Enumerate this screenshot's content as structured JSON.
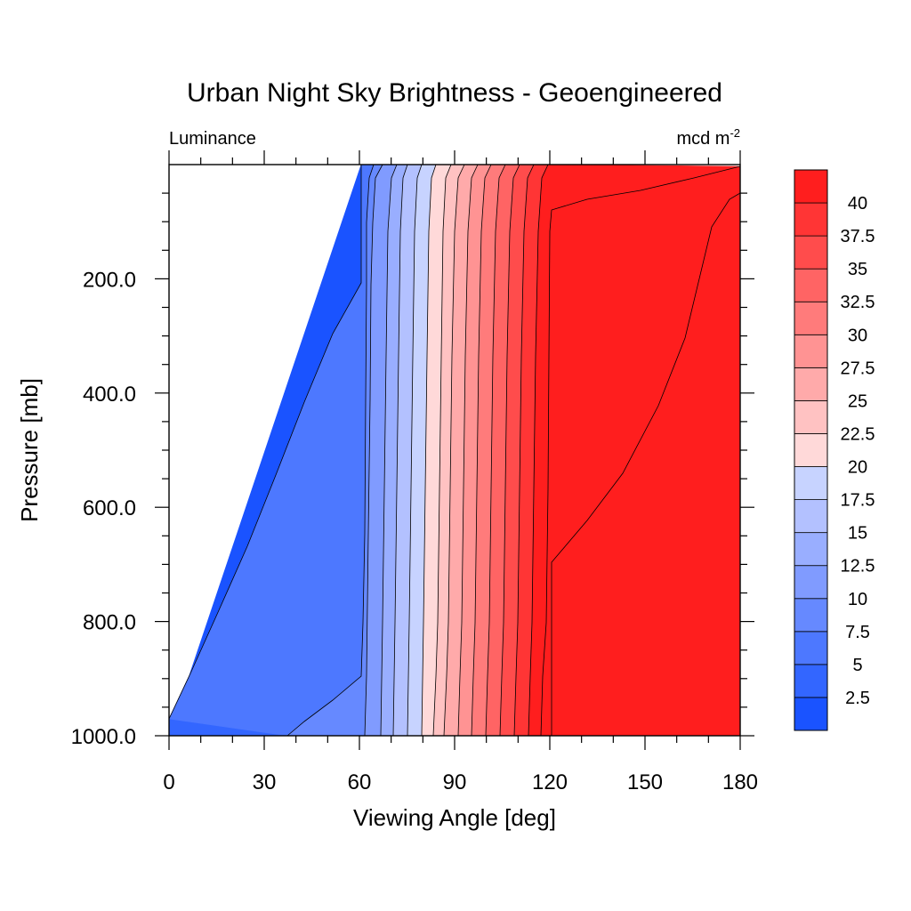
{
  "chart_data": {
    "type": "heatmap",
    "subtype": "filled-contour",
    "title": "Urban Night Sky Brightness - Geoengineered",
    "left_string": "Luminance",
    "right_string": "mcd m",
    "right_string_sup": "-2",
    "xlabel": "Viewing Angle [deg]",
    "ylabel": "Pressure [mb]",
    "xlim": [
      0,
      180
    ],
    "ylim": [
      1000,
      0
    ],
    "y_reversed": true,
    "x_ticks": [
      0,
      30,
      60,
      90,
      120,
      150,
      180
    ],
    "x_tick_labels": [
      "0",
      "30",
      "60",
      "90",
      "120",
      "150",
      "180"
    ],
    "y_ticks": [
      200,
      400,
      600,
      800,
      1000
    ],
    "y_tick_labels": [
      "200.0",
      "400.0",
      "600.0",
      "800.0",
      "1000.0"
    ],
    "contour_levels": [
      2.5,
      5,
      7.5,
      10,
      12.5,
      15,
      17.5,
      20,
      22.5,
      25,
      27.5,
      30,
      32.5,
      35,
      37.5,
      40
    ],
    "colorbar_labels": [
      "40",
      "37.5",
      "35",
      "32.5",
      "30",
      "27.5",
      "25",
      "22.5",
      "20",
      "17.5",
      "15",
      "12.5",
      "10",
      "7.5",
      "5",
      "2.5"
    ],
    "fill_colors": [
      "#1a53ff",
      "#3366ff",
      "#4d78ff",
      "#6689ff",
      "#809bff",
      "#99aeff",
      "#b3c1ff",
      "#c7d3ff",
      "#ffd9d9",
      "#ffc2c2",
      "#ffaaaa",
      "#ff9393",
      "#ff7b7b",
      "#ff6464",
      "#ff4c4c",
      "#ff3535",
      "#ff1e1e"
    ],
    "grid": false,
    "legend": "colorbar-right"
  }
}
